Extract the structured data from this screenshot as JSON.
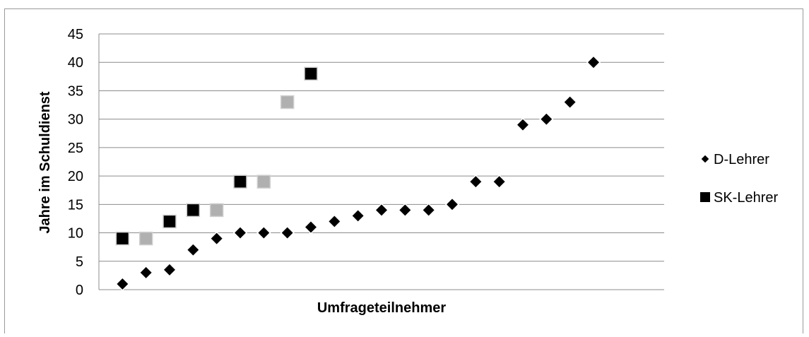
{
  "chart_data": {
    "type": "scatter",
    "title": "",
    "xlabel": "Umfrageteilnehmer",
    "ylabel": "Jahre im Schuldienst",
    "ylim": [
      0,
      45
    ],
    "yticks": [
      "0",
      "5",
      "10",
      "15",
      "20",
      "25",
      "30",
      "35",
      "40",
      "45"
    ],
    "xlim": [
      0,
      24
    ],
    "grid": true,
    "legend_position": "right",
    "series": [
      {
        "name": "D-Lehrer",
        "marker": "diamond",
        "color": "#000000",
        "points": [
          {
            "x": 1,
            "y": 1
          },
          {
            "x": 2,
            "y": 3
          },
          {
            "x": 3,
            "y": 3.5
          },
          {
            "x": 4,
            "y": 7
          },
          {
            "x": 5,
            "y": 9
          },
          {
            "x": 6,
            "y": 10
          },
          {
            "x": 7,
            "y": 10
          },
          {
            "x": 8,
            "y": 10
          },
          {
            "x": 9,
            "y": 11
          },
          {
            "x": 10,
            "y": 12
          },
          {
            "x": 11,
            "y": 13
          },
          {
            "x": 12,
            "y": 14
          },
          {
            "x": 13,
            "y": 14
          },
          {
            "x": 14,
            "y": 14
          },
          {
            "x": 15,
            "y": 15
          },
          {
            "x": 16,
            "y": 19
          },
          {
            "x": 17,
            "y": 19
          },
          {
            "x": 18,
            "y": 29
          },
          {
            "x": 19,
            "y": 30
          },
          {
            "x": 20,
            "y": 33
          },
          {
            "x": 21,
            "y": 40
          }
        ]
      },
      {
        "name": "SK-Lehrer",
        "marker": "square",
        "color": "#000000",
        "points": [
          {
            "x": 1,
            "y": 9,
            "color": "#000000"
          },
          {
            "x": 2,
            "y": 9,
            "color": "#b0b0b0"
          },
          {
            "x": 3,
            "y": 12,
            "color": "#000000"
          },
          {
            "x": 4,
            "y": 14,
            "color": "#000000"
          },
          {
            "x": 5,
            "y": 14,
            "color": "#b0b0b0"
          },
          {
            "x": 6,
            "y": 19,
            "color": "#000000"
          },
          {
            "x": 7,
            "y": 19,
            "color": "#b0b0b0"
          },
          {
            "x": 8,
            "y": 33,
            "color": "#b0b0b0"
          },
          {
            "x": 9,
            "y": 38,
            "color": "#000000"
          }
        ]
      }
    ]
  }
}
